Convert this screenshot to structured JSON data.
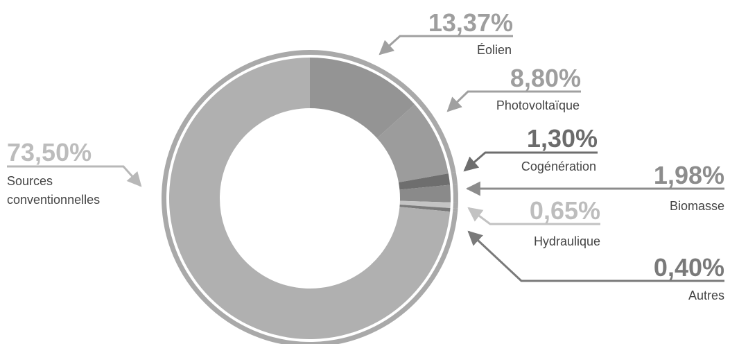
{
  "chart_data": {
    "type": "pie",
    "style": "donut",
    "segments": [
      {
        "label": "Éolien",
        "value": 13.37,
        "value_text": "13,37%",
        "color": "#949494"
      },
      {
        "label": "Photovoltaïque",
        "value": 8.8,
        "value_text": "8,80%",
        "color": "#9c9c9c"
      },
      {
        "label": "Cogénération",
        "value": 1.3,
        "value_text": "1,30%",
        "color": "#6e6e6e"
      },
      {
        "label": "Biomasse",
        "value": 1.98,
        "value_text": "1,98%",
        "color": "#8a8a8a"
      },
      {
        "label": "Hydraulique",
        "value": 0.65,
        "value_text": "0,65%",
        "color": "#c4c4c4"
      },
      {
        "label": "Autres",
        "value": 0.4,
        "value_text": "0,40%",
        "color": "#7a7a7a"
      },
      {
        "label": "Sources conventionnelles",
        "label_lines": [
          "Sources",
          "conventionnelles"
        ],
        "value": 73.5,
        "value_text": "73,50%",
        "color": "#b0b0b0"
      }
    ]
  }
}
